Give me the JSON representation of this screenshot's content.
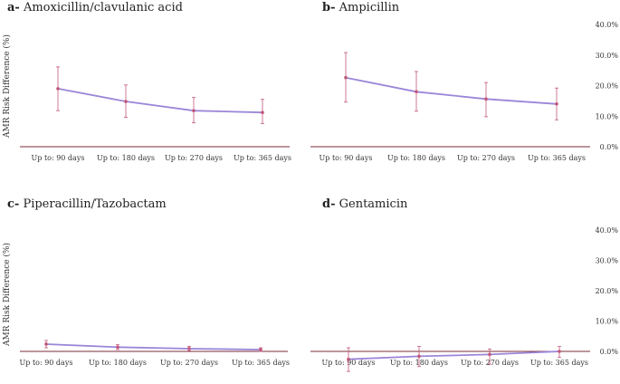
{
  "chart_data": [
    {
      "type": "line",
      "panel_letter": "a-",
      "title": "Amoxicillin/clavulanic acid",
      "ylabel": "AMR Risk  Difference  (%)",
      "categories": [
        "Up to: 90 days",
        "Up to: 180 days",
        "Up to: 270 days",
        "Up to: 365 days"
      ],
      "values": [
        19.0,
        14.8,
        11.8,
        11.2
      ],
      "ci_low": [
        11.8,
        9.6,
        7.8,
        7.6
      ],
      "ci_high": [
        26.1,
        20.2,
        16.1,
        15.5
      ],
      "ylim": [
        0,
        40
      ],
      "yticks": [],
      "line_color": "#9b86d9",
      "errbar_color": "#c0577a",
      "axis_color": "#7a2e3a"
    },
    {
      "type": "line",
      "panel_letter": "b-",
      "title": "Ampicillin",
      "ylabel": "",
      "categories": [
        "Up to: 90 days",
        "Up to: 180 days",
        "Up to: 270 days",
        "Up to: 365 days"
      ],
      "values": [
        22.6,
        18.0,
        15.6,
        14.0
      ],
      "ci_low": [
        14.6,
        11.6,
        9.8,
        8.8
      ],
      "ci_high": [
        30.8,
        24.6,
        21.0,
        19.2
      ],
      "ylim": [
        0,
        40
      ],
      "yticks": [
        "0.0%",
        "10.0%",
        "20.0%",
        "30.0%",
        "40.0%"
      ],
      "line_color": "#9b86d9",
      "errbar_color": "#c0577a",
      "axis_color": "#7a2e3a"
    },
    {
      "type": "line",
      "panel_letter": "c-",
      "title": "Piperacillin/Tazobactam",
      "ylabel": "AMR Risk  Difference  (%)",
      "categories": [
        "Up to: 90 days",
        "Up to: 180 days",
        "Up to: 270 days",
        "Up to: 365 days"
      ],
      "values": [
        2.4,
        1.4,
        0.9,
        0.6
      ],
      "ci_low": [
        1.2,
        0.6,
        0.2,
        0.0
      ],
      "ci_high": [
        3.6,
        2.2,
        1.7,
        1.2
      ],
      "ylim": [
        0,
        40
      ],
      "yticks": [],
      "line_color": "#9b86d9",
      "errbar_color": "#c0577a",
      "axis_color": "#7a2e3a"
    },
    {
      "type": "line",
      "panel_letter": "d-",
      "title": "Gentamicin",
      "ylabel": "",
      "categories": [
        "Up to: 90 days",
        "Up to: 180 days",
        "Up to: 270 days",
        "Up to: 365 days"
      ],
      "values": [
        -2.6,
        -1.6,
        -1.0,
        0.0
      ],
      "ci_low": [
        -6.6,
        -5.0,
        -4.2,
        -2.0
      ],
      "ci_high": [
        1.2,
        1.6,
        0.8,
        1.6
      ],
      "ylim": [
        0,
        40
      ],
      "yticks": [
        "0.0%",
        "10.0%",
        "20.0%",
        "30.0%",
        "40.0%"
      ],
      "line_color": "#9b86d9",
      "errbar_color": "#c0577a",
      "axis_color": "#7a2e3a"
    }
  ]
}
